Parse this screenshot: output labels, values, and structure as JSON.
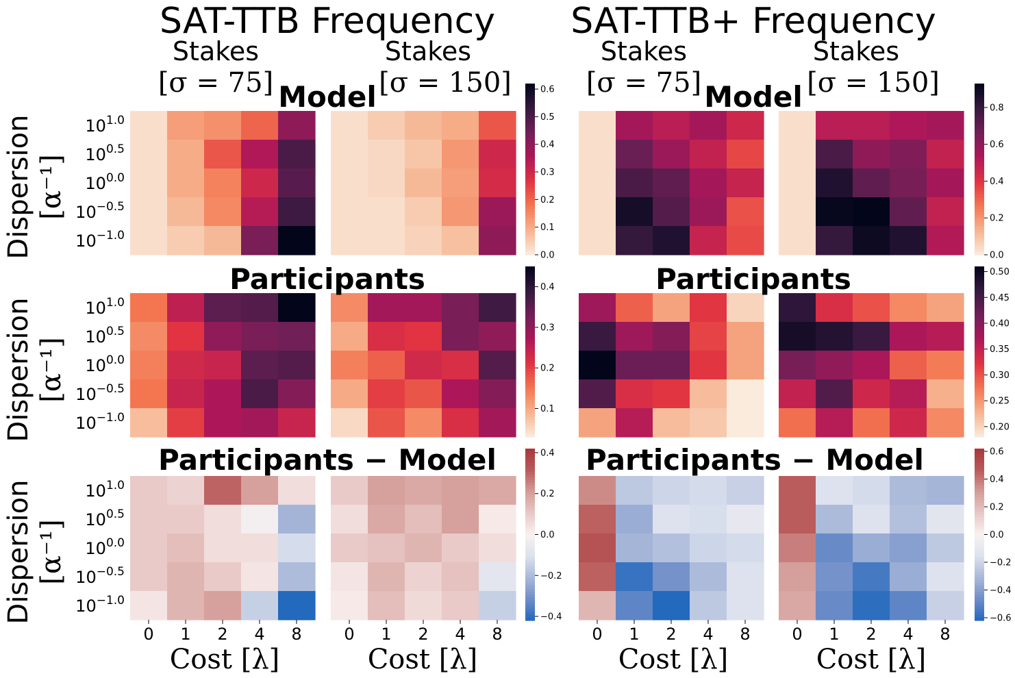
{
  "titles": {
    "left": "SAT-TTB Frequency",
    "right": "SAT-TTB+ Frequency"
  },
  "stakes": {
    "word": "Stakes",
    "sigma_75": "[σ = 75]",
    "sigma_150": "[σ = 150]"
  },
  "row_titles": {
    "model": "Model",
    "participants": "Participants",
    "difference": "Participants − Model"
  },
  "axes": {
    "ylabel_word": "Dispersion",
    "ylabel_unit": "[α⁻¹]",
    "xlabel": "Cost [λ]",
    "y_ticks": [
      {
        "base": "10",
        "exp": "1.0"
      },
      {
        "base": "10",
        "exp": "0.5"
      },
      {
        "base": "10",
        "exp": "0.0"
      },
      {
        "base": "10",
        "exp": "−0.5"
      },
      {
        "base": "10",
        "exp": "−1.0"
      }
    ],
    "x_ticks": [
      "0",
      "1",
      "2",
      "4",
      "8"
    ]
  },
  "colorbars": {
    "left_model": {
      "cmap": "rocket_r",
      "min": 0.0,
      "max": 0.62,
      "ticks": [
        "0.0",
        "0.1",
        "0.2",
        "0.3",
        "0.4",
        "0.5",
        "0.6"
      ]
    },
    "left_participants": {
      "cmap": "rocket_r",
      "min": 0.03,
      "max": 0.45,
      "ticks": [
        "0.1",
        "0.2",
        "0.3",
        "0.4"
      ]
    },
    "left_difference": {
      "cmap": "vlag",
      "min": -0.42,
      "max": 0.42,
      "ticks": [
        "0.4",
        "0.2",
        "0.0",
        "−0.2",
        "−0.4"
      ]
    },
    "right_model": {
      "cmap": "rocket_r",
      "min": 0.0,
      "max": 0.93,
      "ticks": [
        "0.0",
        "0.2",
        "0.4",
        "0.6",
        "0.8"
      ]
    },
    "right_participants": {
      "cmap": "rocket_r",
      "min": 0.18,
      "max": 0.51,
      "ticks": [
        "0.20",
        "0.25",
        "0.30",
        "0.35",
        "0.40",
        "0.45",
        "0.50"
      ]
    },
    "right_difference": {
      "cmap": "vlag",
      "min": -0.62,
      "max": 0.62,
      "ticks": [
        "0.6",
        "0.4",
        "0.2",
        "0.0",
        "−0.2",
        "−0.4",
        "−0.6"
      ]
    }
  },
  "chart_data": [
    {
      "type": "heatmap",
      "group": "SAT-TTB Frequency",
      "row": "Model",
      "column": "Stakes [σ = 75]",
      "scale": "left_model",
      "y": [
        "10^1.0",
        "10^0.5",
        "10^0.0",
        "10^-0.5",
        "10^-1.0"
      ],
      "x": [
        0,
        1,
        2,
        4,
        8
      ],
      "values": [
        [
          0.02,
          0.12,
          0.14,
          0.2,
          0.4
        ],
        [
          0.02,
          0.1,
          0.22,
          0.35,
          0.5
        ],
        [
          0.02,
          0.1,
          0.16,
          0.3,
          0.48
        ],
        [
          0.02,
          0.08,
          0.15,
          0.34,
          0.52
        ],
        [
          0.02,
          0.05,
          0.08,
          0.43,
          0.62
        ]
      ]
    },
    {
      "type": "heatmap",
      "group": "SAT-TTB Frequency",
      "row": "Model",
      "column": "Stakes [σ = 150]",
      "scale": "left_model",
      "y": [
        "10^1.0",
        "10^0.5",
        "10^0.0",
        "10^-0.5",
        "10^-1.0"
      ],
      "x": [
        0,
        1,
        2,
        4,
        8
      ],
      "values": [
        [
          0.02,
          0.05,
          0.08,
          0.1,
          0.22
        ],
        [
          0.02,
          0.03,
          0.06,
          0.13,
          0.3
        ],
        [
          0.02,
          0.03,
          0.08,
          0.12,
          0.29
        ],
        [
          0.02,
          0.02,
          0.05,
          0.13,
          0.38
        ],
        [
          0.02,
          0.02,
          0.04,
          0.07,
          0.4
        ]
      ]
    },
    {
      "type": "heatmap",
      "group": "SAT-TTB Frequency",
      "row": "Participants",
      "column": "Stakes [σ = 75]",
      "scale": "left_participants",
      "y": [
        "10^1.0",
        "10^0.5",
        "10^0.0",
        "10^-0.5",
        "10^-1.0"
      ],
      "x": [
        0,
        1,
        2,
        4,
        8
      ],
      "values": [
        [
          0.15,
          0.25,
          0.35,
          0.36,
          0.45
        ],
        [
          0.13,
          0.21,
          0.3,
          0.32,
          0.33
        ],
        [
          0.14,
          0.23,
          0.24,
          0.35,
          0.36
        ],
        [
          0.15,
          0.24,
          0.27,
          0.37,
          0.31
        ],
        [
          0.08,
          0.2,
          0.27,
          0.28,
          0.24
        ]
      ]
    },
    {
      "type": "heatmap",
      "group": "SAT-TTB Frequency",
      "row": "Participants",
      "column": "Stakes [σ = 150]",
      "scale": "left_participants",
      "y": [
        "10^1.0",
        "10^0.5",
        "10^0.0",
        "10^-0.5",
        "10^-1.0"
      ],
      "x": [
        0,
        1,
        2,
        4,
        8
      ],
      "values": [
        [
          0.13,
          0.28,
          0.28,
          0.32,
          0.38
        ],
        [
          0.1,
          0.22,
          0.21,
          0.32,
          0.3
        ],
        [
          0.14,
          0.17,
          0.23,
          0.22,
          0.36
        ],
        [
          0.1,
          0.2,
          0.18,
          0.27,
          0.31
        ],
        [
          0.05,
          0.18,
          0.13,
          0.22,
          0.28
        ]
      ]
    },
    {
      "type": "heatmap",
      "group": "SAT-TTB Frequency",
      "row": "Participants − Model",
      "column": "Stakes [σ = 75]",
      "scale": "left_difference",
      "y": [
        "10^1.0",
        "10^0.5",
        "10^0.0",
        "10^-0.5",
        "10^-1.0"
      ],
      "x": [
        0,
        1,
        2,
        4,
        8
      ],
      "values": [
        [
          0.1,
          0.08,
          0.3,
          0.2,
          0.05
        ],
        [
          0.1,
          0.1,
          0.05,
          -0.02,
          -0.22
        ],
        [
          0.1,
          0.13,
          0.05,
          0.05,
          -0.12
        ],
        [
          0.1,
          0.15,
          0.1,
          0.03,
          -0.2
        ],
        [
          0.03,
          0.15,
          0.2,
          -0.15,
          -0.42
        ]
      ]
    },
    {
      "type": "heatmap",
      "group": "SAT-TTB Frequency",
      "row": "Participants − Model",
      "column": "Stakes [σ = 150]",
      "scale": "left_difference",
      "y": [
        "10^1.0",
        "10^0.5",
        "10^0.0",
        "10^-0.5",
        "10^-1.0"
      ],
      "x": [
        0,
        1,
        2,
        4,
        8
      ],
      "values": [
        [
          0.1,
          0.2,
          0.18,
          0.2,
          0.18
        ],
        [
          0.05,
          0.18,
          0.13,
          0.2,
          0.02
        ],
        [
          0.1,
          0.12,
          0.15,
          0.1,
          0.05
        ],
        [
          0.03,
          0.15,
          0.08,
          0.12,
          -0.08
        ],
        [
          0.02,
          0.13,
          0.06,
          0.1,
          -0.15
        ]
      ]
    },
    {
      "type": "heatmap",
      "group": "SAT-TTB+ Frequency",
      "row": "Model",
      "column": "Stakes [σ = 75]",
      "scale": "right_model",
      "y": [
        "10^1.0",
        "10^0.5",
        "10^0.0",
        "10^-0.5",
        "10^-1.0"
      ],
      "x": [
        0,
        1,
        2,
        4,
        8
      ],
      "values": [
        [
          0.03,
          0.55,
          0.5,
          0.55,
          0.45
        ],
        [
          0.03,
          0.68,
          0.57,
          0.48,
          0.36
        ],
        [
          0.03,
          0.75,
          0.7,
          0.55,
          0.47
        ],
        [
          0.03,
          0.88,
          0.73,
          0.57,
          0.34
        ],
        [
          0.03,
          0.8,
          0.85,
          0.47,
          0.35
        ]
      ]
    },
    {
      "type": "heatmap",
      "group": "SAT-TTB+ Frequency",
      "row": "Model",
      "column": "Stakes [σ = 150]",
      "scale": "right_model",
      "y": [
        "10^1.0",
        "10^0.5",
        "10^0.0",
        "10^-0.5",
        "10^-1.0"
      ],
      "x": [
        0,
        1,
        2,
        4,
        8
      ],
      "values": [
        [
          0.03,
          0.5,
          0.5,
          0.53,
          0.55
        ],
        [
          0.03,
          0.75,
          0.6,
          0.63,
          0.48
        ],
        [
          0.03,
          0.85,
          0.7,
          0.65,
          0.55
        ],
        [
          0.03,
          0.92,
          0.93,
          0.7,
          0.48
        ],
        [
          0.03,
          0.8,
          0.9,
          0.85,
          0.52
        ]
      ]
    },
    {
      "type": "heatmap",
      "group": "SAT-TTB+ Frequency",
      "row": "Participants",
      "column": "Stakes [σ = 75]",
      "scale": "right_participants",
      "y": [
        "10^1.0",
        "10^0.5",
        "10^0.0",
        "10^-0.5",
        "10^-1.0"
      ],
      "x": [
        0,
        1,
        2,
        4,
        8
      ],
      "values": [
        [
          0.38,
          0.29,
          0.24,
          0.32,
          0.2
        ],
        [
          0.46,
          0.38,
          0.4,
          0.31,
          0.24
        ],
        [
          0.51,
          0.42,
          0.42,
          0.32,
          0.24
        ],
        [
          0.44,
          0.33,
          0.32,
          0.22,
          0.18
        ],
        [
          0.24,
          0.36,
          0.22,
          0.21,
          0.18
        ]
      ]
    },
    {
      "type": "heatmap",
      "group": "SAT-TTB+ Frequency",
      "row": "Participants",
      "column": "Stakes [σ = 150]",
      "scale": "right_participants",
      "y": [
        "10^1.0",
        "10^0.5",
        "10^0.0",
        "10^-0.5",
        "10^-1.0"
      ],
      "x": [
        0,
        1,
        2,
        4,
        8
      ],
      "values": [
        [
          0.47,
          0.33,
          0.3,
          0.26,
          0.24
        ],
        [
          0.49,
          0.48,
          0.46,
          0.37,
          0.36
        ],
        [
          0.41,
          0.39,
          0.37,
          0.29,
          0.27
        ],
        [
          0.35,
          0.44,
          0.34,
          0.36,
          0.23
        ],
        [
          0.28,
          0.36,
          0.28,
          0.34,
          0.26
        ]
      ]
    },
    {
      "type": "heatmap",
      "group": "SAT-TTB+ Frequency",
      "row": "Participants − Model",
      "column": "Stakes [σ = 75]",
      "scale": "right_difference",
      "y": [
        "10^1.0",
        "10^0.5",
        "10^0.0",
        "10^-0.5",
        "10^-1.0"
      ],
      "x": [
        0,
        1,
        2,
        4,
        8
      ],
      "values": [
        [
          0.35,
          -0.25,
          -0.2,
          -0.18,
          -0.22
        ],
        [
          0.45,
          -0.35,
          -0.15,
          -0.17,
          -0.1
        ],
        [
          0.5,
          -0.32,
          -0.28,
          -0.2,
          -0.18
        ],
        [
          0.45,
          -0.58,
          -0.45,
          -0.3,
          -0.15
        ],
        [
          0.22,
          -0.5,
          -0.62,
          -0.25,
          -0.15
        ]
      ]
    },
    {
      "type": "heatmap",
      "group": "SAT-TTB+ Frequency",
      "row": "Participants − Model",
      "column": "Stakes [σ = 150]",
      "scale": "right_difference",
      "y": [
        "10^1.0",
        "10^0.5",
        "10^0.0",
        "10^-0.5",
        "10^-1.0"
      ],
      "x": [
        0,
        1,
        2,
        4,
        8
      ],
      "values": [
        [
          0.46,
          -0.15,
          -0.18,
          -0.3,
          -0.32
        ],
        [
          0.46,
          -0.3,
          -0.15,
          -0.28,
          -0.12
        ],
        [
          0.38,
          -0.48,
          -0.35,
          -0.4,
          -0.25
        ],
        [
          0.3,
          -0.45,
          -0.55,
          -0.35,
          -0.15
        ],
        [
          0.27,
          -0.48,
          -0.6,
          -0.5,
          -0.22
        ]
      ]
    }
  ]
}
